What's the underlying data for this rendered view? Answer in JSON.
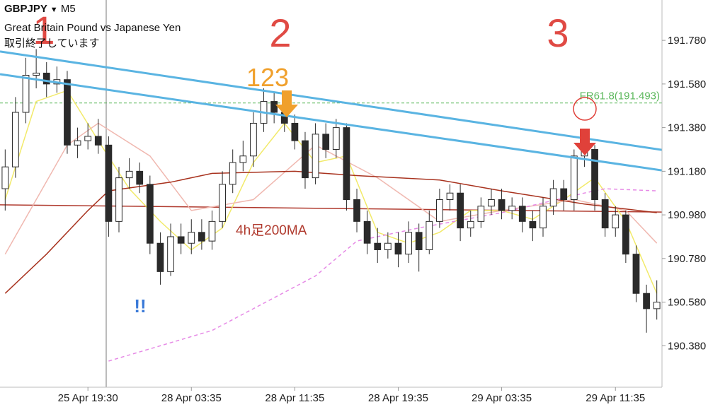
{
  "header": {
    "symbol": "GBPJPY",
    "timeframe": "M5",
    "description": "Great Britain Pound vs Japanese Yen",
    "status": "取引終了しています"
  },
  "annotations": {
    "mark_1": "1",
    "mark_2": "2",
    "mark_3": "3",
    "mark_123": "123",
    "exclaim": "!!"
  },
  "chart_data": {
    "type": "candlestick",
    "categories": [
      null,
      null,
      null,
      null,
      null,
      null,
      null,
      null,
      "25 Apr 19:30",
      null,
      null,
      null,
      null,
      null,
      null,
      null,
      null,
      null,
      "28 Apr 03:35",
      null,
      null,
      null,
      null,
      null,
      null,
      null,
      null,
      null,
      "28 Apr 11:35",
      null,
      null,
      null,
      null,
      null,
      null,
      null,
      null,
      null,
      "28 Apr 19:35",
      null,
      null,
      null,
      null,
      null,
      null,
      null,
      null,
      null,
      "29 Apr 03:35",
      null,
      null,
      null,
      null,
      null,
      null,
      null,
      null,
      null,
      null,
      "29 Apr 11:35",
      null,
      null,
      null,
      null
    ],
    "open": [
      191.1,
      191.2,
      191.45,
      191.62,
      191.63,
      191.58,
      191.6,
      191.3,
      191.32,
      191.34,
      191.3,
      190.95,
      191.15,
      191.18,
      191.12,
      190.85,
      190.72,
      190.88,
      190.85,
      190.9,
      190.86,
      190.95,
      191.12,
      191.22,
      191.25,
      191.4,
      191.5,
      191.45,
      191.4,
      191.32,
      191.15,
      191.35,
      191.28,
      191.38,
      191.05,
      190.95,
      190.85,
      190.82,
      190.85,
      190.8,
      190.9,
      190.82,
      190.95,
      191.05,
      191.08,
      190.92,
      190.95,
      191.02,
      191.05,
      191.0,
      191.02,
      190.95,
      190.92,
      191.02,
      191.1,
      191.05,
      191.25,
      191.28,
      191.05,
      190.92,
      190.98,
      190.8,
      190.62,
      190.55
    ],
    "high": [
      191.28,
      191.52,
      191.7,
      191.74,
      191.68,
      191.66,
      191.64,
      191.38,
      191.4,
      191.42,
      191.34,
      191.2,
      191.24,
      191.22,
      191.16,
      190.9,
      190.94,
      190.94,
      190.96,
      190.96,
      191.0,
      191.18,
      191.28,
      191.32,
      191.45,
      191.56,
      191.54,
      191.5,
      191.44,
      191.36,
      191.4,
      191.4,
      191.42,
      191.4,
      191.1,
      191.0,
      190.92,
      190.9,
      190.9,
      190.95,
      190.94,
      191.0,
      191.1,
      191.12,
      191.12,
      191.0,
      191.06,
      191.1,
      191.1,
      191.06,
      191.06,
      191.0,
      191.06,
      191.14,
      191.14,
      191.28,
      191.33,
      191.3,
      191.08,
      191.02,
      191.0,
      190.84,
      190.66,
      190.68
    ],
    "low": [
      191.0,
      191.15,
      191.4,
      191.56,
      191.52,
      191.54,
      191.26,
      191.24,
      191.28,
      191.26,
      190.88,
      190.9,
      191.1,
      191.08,
      190.8,
      190.66,
      190.7,
      190.8,
      190.8,
      190.82,
      190.82,
      190.92,
      191.08,
      191.18,
      191.2,
      191.36,
      191.4,
      191.36,
      191.28,
      191.1,
      191.12,
      191.24,
      191.24,
      191.0,
      190.9,
      190.8,
      190.76,
      190.78,
      190.74,
      190.76,
      190.72,
      190.8,
      190.92,
      191.0,
      190.86,
      190.88,
      190.92,
      190.98,
      190.96,
      190.96,
      190.9,
      190.86,
      190.88,
      190.98,
      191.0,
      191.0,
      191.2,
      191.0,
      190.88,
      190.88,
      190.76,
      190.58,
      190.44,
      190.5
    ],
    "close": [
      191.2,
      191.45,
      191.62,
      191.63,
      191.58,
      191.6,
      191.3,
      191.32,
      191.34,
      191.3,
      190.95,
      191.15,
      191.18,
      191.12,
      190.85,
      190.72,
      190.88,
      190.85,
      190.9,
      190.86,
      190.95,
      191.12,
      191.22,
      191.25,
      191.4,
      191.5,
      191.45,
      191.4,
      191.32,
      191.15,
      191.35,
      191.28,
      191.38,
      191.05,
      190.95,
      190.85,
      190.82,
      190.85,
      190.8,
      190.9,
      190.82,
      190.95,
      191.05,
      191.08,
      190.92,
      190.95,
      191.02,
      191.05,
      191.0,
      191.02,
      190.95,
      190.92,
      191.02,
      191.1,
      191.05,
      191.25,
      191.28,
      191.05,
      190.92,
      190.98,
      190.8,
      190.62,
      190.55,
      190.58
    ],
    "up_color": "#ffffff",
    "down_color": "#2a2a2a",
    "ma_lines": [
      {
        "color": "#f2ea6a",
        "dash": false,
        "x": [
          0,
          3,
          6,
          9,
          12,
          15,
          18,
          21,
          24,
          27,
          30,
          33,
          36,
          39,
          42,
          45,
          48,
          51,
          54,
          57,
          60,
          63
        ],
        "values": [
          191.05,
          191.5,
          191.55,
          191.32,
          191.1,
          190.95,
          190.82,
          190.92,
          191.22,
          191.4,
          191.22,
          191.25,
          190.9,
          190.85,
          190.9,
          191.0,
          191.0,
          190.96,
          191.05,
          191.15,
          190.95,
          190.62
        ]
      },
      {
        "color": "#f0b8b0",
        "dash": false,
        "x": [
          0,
          6,
          9,
          14,
          18,
          24,
          30,
          36,
          42,
          48,
          55,
          60,
          63
        ],
        "values": [
          190.8,
          191.3,
          191.4,
          191.25,
          191.0,
          191.05,
          191.3,
          191.15,
          190.95,
          191.0,
          191.05,
          191.0,
          190.85
        ]
      },
      {
        "color": "#a8321e",
        "dash": false,
        "x": [
          0,
          4,
          8,
          10,
          16,
          20,
          28,
          34,
          42,
          48,
          56,
          63
        ],
        "values": [
          190.62,
          190.8,
          191.0,
          191.09,
          191.13,
          191.17,
          191.18,
          191.16,
          191.14,
          191.09,
          191.03,
          190.99
        ]
      },
      {
        "color": "#e68ae6",
        "dash": true,
        "x": [
          10,
          20,
          30,
          34,
          40,
          48,
          56,
          58,
          63
        ],
        "values": [
          190.31,
          190.45,
          190.7,
          190.86,
          190.92,
          190.99,
          191.08,
          191.1,
          191.09
        ]
      }
    ],
    "trendlines": [
      {
        "color": "#5ab4e2",
        "values": [
          191.729,
          191.278
        ]
      },
      {
        "color": "#5ab4e2",
        "values": [
          191.625,
          191.184
        ]
      }
    ],
    "ma200_4h": {
      "label": "4h足200MA",
      "color": "#b03a2e",
      "values": [
        191.026,
        190.993
      ]
    },
    "fib": {
      "label": "FR61.8(191.493)",
      "value": 191.493,
      "color": "#5cb85c"
    },
    "ylim": [
      190.19,
      191.965
    ],
    "yticks": [
      {
        "value": 190.38,
        "label": "190.380"
      },
      {
        "value": 190.58,
        "label": "190.580"
      },
      {
        "value": 190.78,
        "label": "190.780"
      },
      {
        "value": 190.98,
        "label": "190.980"
      },
      {
        "value": 191.18,
        "label": "191.180"
      },
      {
        "value": 191.38,
        "label": "191.380"
      },
      {
        "value": 191.58,
        "label": "191.580"
      },
      {
        "value": 191.78,
        "label": "191.780"
      }
    ]
  }
}
